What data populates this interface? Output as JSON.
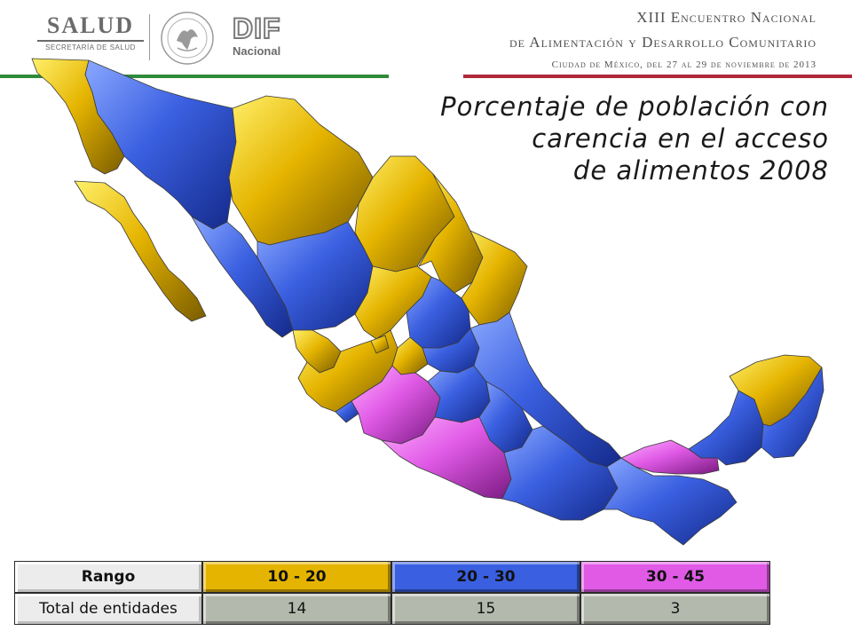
{
  "header": {
    "salud_logo": "SALUD",
    "salud_subtitle": "SECRETARÍA DE SALUD",
    "dif_logo": "DIF",
    "dif_subtitle": "Nacional",
    "event_line1": "XIII Encuentro Nacional",
    "event_line2": "de Alimentación y Desarrollo Comunitario",
    "event_line3": "Ciudad de México, del 27 al 29 de noviembre de 2013"
  },
  "title": {
    "line1": "Porcentaje de población con",
    "line2": "carencia en el acceso",
    "line3": "de alimentos 2008"
  },
  "colors": {
    "range_10_20": "#e5b400",
    "range_20_30": "#3a5fe0",
    "range_30_45": "#e05ae6",
    "green_bar": "#2f8a3a",
    "red_bar": "#b0283a"
  },
  "legend": {
    "header_label": "Rango",
    "count_label": "Total de entidades",
    "ranges": [
      {
        "label": "10 - 20",
        "count": "14",
        "color": "#e5b400"
      },
      {
        "label": "20 - 30",
        "count": "15",
        "color": "#3a5fe0"
      },
      {
        "label": "30 - 45",
        "count": "3",
        "color": "#e05ae6"
      }
    ]
  }
}
